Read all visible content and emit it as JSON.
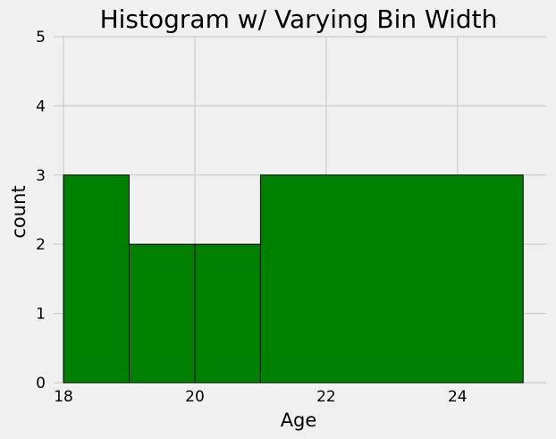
{
  "chart_data": {
    "type": "bar",
    "title": "Histogram w/ Varying Bin Width",
    "xlabel": "Age",
    "ylabel": "count",
    "bins": [
      {
        "start": 18,
        "end": 19,
        "count": 3
      },
      {
        "start": 19,
        "end": 20,
        "count": 2
      },
      {
        "start": 20,
        "end": 21,
        "count": 2
      },
      {
        "start": 21,
        "end": 25,
        "count": 3
      }
    ],
    "xlim": [
      17.85,
      25.35
    ],
    "ylim": [
      0,
      5
    ],
    "xticks": [
      18,
      20,
      22,
      24
    ],
    "yticks": [
      0,
      1,
      2,
      3,
      4,
      5
    ],
    "grid": true,
    "bar_color": "#008000",
    "edge_color": "#000000",
    "background_color": "#f0f0f0",
    "grid_color": "#cbcbcb"
  }
}
